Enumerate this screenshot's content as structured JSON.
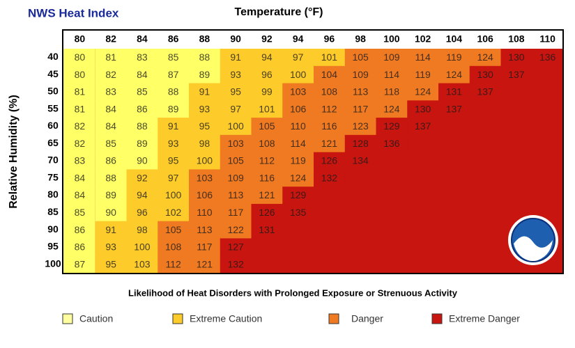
{
  "header": {
    "title": "NWS Heat Index",
    "x_axis_label": "Temperature (°F)",
    "y_axis_label": "Relative Humidity (%)"
  },
  "table": {
    "columns": [
      80,
      82,
      84,
      86,
      88,
      90,
      92,
      94,
      96,
      98,
      100,
      102,
      104,
      106,
      108,
      110
    ],
    "rows": [
      {
        "humidity": 40,
        "values": [
          80,
          81,
          83,
          85,
          88,
          91,
          94,
          97,
          101,
          105,
          109,
          114,
          119,
          124,
          130,
          136
        ],
        "colors": [
          "#ffff66",
          "#ffff66",
          "#ffff66",
          "#ffff66",
          "#ffff66",
          "#fdcb2a",
          "#fdcb2a",
          "#fdcb2a",
          "#fdcb2a",
          "#f07a22",
          "#f07a22",
          "#f07a22",
          "#f07a22",
          "#f07a22",
          "#c8150f",
          "#c8150f"
        ]
      },
      {
        "humidity": 45,
        "values": [
          80,
          82,
          84,
          87,
          89,
          93,
          96,
          100,
          104,
          109,
          114,
          119,
          124,
          130,
          137
        ],
        "colors": [
          "#ffff66",
          "#ffff66",
          "#ffff66",
          "#ffff66",
          "#ffff66",
          "#fdcb2a",
          "#fdcb2a",
          "#fdcb2a",
          "#f07a22",
          "#f07a22",
          "#f07a22",
          "#f07a22",
          "#f07a22",
          "#c8150f",
          "#c8150f"
        ]
      },
      {
        "humidity": 50,
        "values": [
          81,
          83,
          85,
          88,
          91,
          95,
          99,
          103,
          108,
          113,
          118,
          124,
          131,
          137
        ],
        "colors": [
          "#ffff66",
          "#ffff66",
          "#ffff66",
          "#ffff66",
          "#fdcb2a",
          "#fdcb2a",
          "#fdcb2a",
          "#f07a22",
          "#f07a22",
          "#f07a22",
          "#f07a22",
          "#f07a22",
          "#c8150f",
          "#c8150f"
        ]
      },
      {
        "humidity": 55,
        "values": [
          81,
          84,
          86,
          89,
          93,
          97,
          101,
          106,
          112,
          117,
          124,
          130,
          137
        ],
        "colors": [
          "#ffff66",
          "#ffff66",
          "#ffff66",
          "#ffff66",
          "#fdcb2a",
          "#fdcb2a",
          "#fdcb2a",
          "#f07a22",
          "#f07a22",
          "#f07a22",
          "#f07a22",
          "#c8150f",
          "#c8150f"
        ]
      },
      {
        "humidity": 60,
        "values": [
          82,
          84,
          88,
          91,
          95,
          100,
          105,
          110,
          116,
          123,
          129,
          137
        ],
        "colors": [
          "#ffff66",
          "#ffff66",
          "#ffff66",
          "#fdcb2a",
          "#fdcb2a",
          "#fdcb2a",
          "#f07a22",
          "#f07a22",
          "#f07a22",
          "#f07a22",
          "#c8150f",
          "#c8150f"
        ]
      },
      {
        "humidity": 65,
        "values": [
          82,
          85,
          89,
          93,
          98,
          103,
          108,
          114,
          121,
          128,
          136
        ],
        "colors": [
          "#ffff66",
          "#ffff66",
          "#ffff66",
          "#fdcb2a",
          "#fdcb2a",
          "#f07a22",
          "#f07a22",
          "#f07a22",
          "#f07a22",
          "#c8150f",
          "#c8150f"
        ]
      },
      {
        "humidity": 70,
        "values": [
          83,
          86,
          90,
          95,
          100,
          105,
          112,
          119,
          126,
          134
        ],
        "colors": [
          "#ffff66",
          "#ffff66",
          "#ffff66",
          "#fdcb2a",
          "#fdcb2a",
          "#f07a22",
          "#f07a22",
          "#f07a22",
          "#c8150f",
          "#c8150f"
        ]
      },
      {
        "humidity": 75,
        "values": [
          84,
          88,
          92,
          97,
          103,
          109,
          116,
          124,
          132
        ],
        "colors": [
          "#ffff66",
          "#ffff66",
          "#fdcb2a",
          "#fdcb2a",
          "#f07a22",
          "#f07a22",
          "#f07a22",
          "#f07a22",
          "#c8150f"
        ]
      },
      {
        "humidity": 80,
        "values": [
          84,
          89,
          94,
          100,
          106,
          113,
          121,
          129
        ],
        "colors": [
          "#ffff66",
          "#ffff66",
          "#fdcb2a",
          "#fdcb2a",
          "#f07a22",
          "#f07a22",
          "#f07a22",
          "#c8150f"
        ]
      },
      {
        "humidity": 85,
        "values": [
          85,
          90,
          96,
          102,
          110,
          117,
          126,
          135
        ],
        "colors": [
          "#ffff66",
          "#ffff66",
          "#fdcb2a",
          "#fdcb2a",
          "#f07a22",
          "#f07a22",
          "#c8150f",
          "#c8150f"
        ]
      },
      {
        "humidity": 90,
        "values": [
          86,
          91,
          98,
          105,
          113,
          122,
          131
        ],
        "colors": [
          "#ffff66",
          "#fdcb2a",
          "#fdcb2a",
          "#f07a22",
          "#f07a22",
          "#f07a22",
          "#c8150f"
        ]
      },
      {
        "humidity": 95,
        "values": [
          86,
          93,
          100,
          108,
          117,
          127
        ],
        "colors": [
          "#ffff66",
          "#fdcb2a",
          "#fdcb2a",
          "#f07a22",
          "#f07a22",
          "#c8150f"
        ]
      },
      {
        "humidity": 100,
        "values": [
          87,
          95,
          103,
          112,
          121,
          132
        ],
        "colors": [
          "#ffff66",
          "#fdcb2a",
          "#fdcb2a",
          "#f07a22",
          "#f07a22",
          "#c8150f"
        ]
      }
    ]
  },
  "footer": {
    "note": "Likelihood of Heat Disorders with Prolonged Exposure or Strenuous Activity",
    "legend": [
      {
        "label": "Caution",
        "color": "#ffffa0"
      },
      {
        "label": "Extreme Caution",
        "color": "#fdcb2a"
      },
      {
        "label": "Danger",
        "color": "#f07a22"
      },
      {
        "label": "Extreme Danger",
        "color": "#c8150f"
      }
    ]
  }
}
